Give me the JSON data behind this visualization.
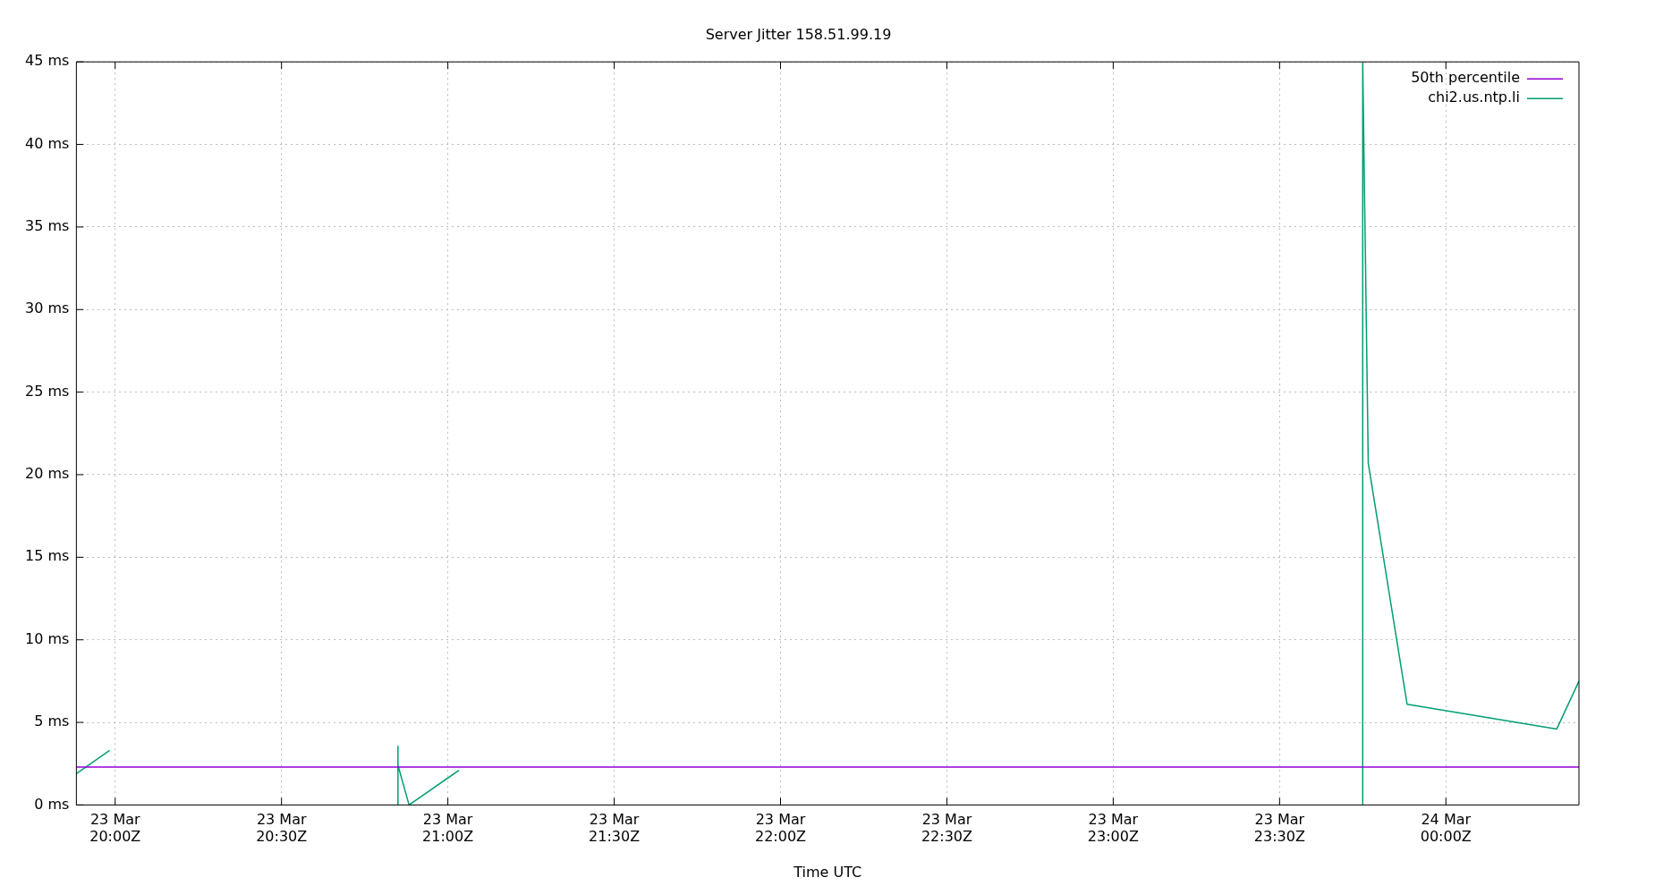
{
  "chart_data": {
    "type": "line",
    "title": "Server Jitter 158.51.99.19",
    "xlabel": "Time UTC",
    "xlim": [
      "--03-23T19:53",
      "--03-24T00:24"
    ],
    "xticks": [
      {
        "value": "--03-23T20:00",
        "label": "23 Mar\n20:00Z"
      },
      {
        "value": "--03-23T20:30",
        "label": "23 Mar\n20:30Z"
      },
      {
        "value": "--03-23T21:00",
        "label": "23 Mar\n21:00Z"
      },
      {
        "value": "--03-23T21:30",
        "label": "23 Mar\n21:30Z"
      },
      {
        "value": "--03-23T22:00",
        "label": "23 Mar\n22:00Z"
      },
      {
        "value": "--03-23T22:30",
        "label": "23 Mar\n22:30Z"
      },
      {
        "value": "--03-23T23:00",
        "label": "23 Mar\n23:00Z"
      },
      {
        "value": "--03-23T23:30",
        "label": "23 Mar\n23:30Z"
      },
      {
        "value": "--03-24T00:00",
        "label": "24 Mar\n00:00Z"
      }
    ],
    "ylim": [
      0,
      45
    ],
    "yticks": [
      {
        "value": 0,
        "label": "0 ms"
      },
      {
        "value": 5,
        "label": "5 ms"
      },
      {
        "value": 10,
        "label": "10 ms"
      },
      {
        "value": 15,
        "label": "15 ms"
      },
      {
        "value": 20,
        "label": "20 ms"
      },
      {
        "value": 25,
        "label": "25 ms"
      },
      {
        "value": 30,
        "label": "30 ms"
      },
      {
        "value": 35,
        "label": "35 ms"
      },
      {
        "value": 40,
        "label": "40 ms"
      },
      {
        "value": 45,
        "label": "45 ms"
      }
    ],
    "grid": true,
    "legend": "top right",
    "marker": "none",
    "line_style": "solid",
    "series": [
      {
        "name": "50th percentile",
        "color": "#9400d3",
        "x": [
          "--03-23T19:53",
          "--03-24T00:24"
        ],
        "values": [
          2.3,
          2.3
        ]
      },
      {
        "name": "chi2.us.ntp.li",
        "color": "#009e73",
        "x": [
          "--03-23T19:53",
          "--03-23T19:59",
          null,
          "--03-23T20:51",
          "--03-23T20:51",
          "--03-23T20:51",
          "--03-23T20:53",
          "--03-23T21:02",
          null,
          "--03-23T23:45",
          "--03-23T23:45",
          "--03-23T23:46",
          "--03-23T23:53",
          "--03-24T00:20",
          "--03-24T00:24"
        ],
        "values": [
          1.9,
          3.3,
          null,
          0,
          3.55,
          2.4,
          0,
          2.1,
          null,
          0,
          45,
          20.7,
          6.1,
          4.6,
          7.5
        ]
      }
    ]
  }
}
